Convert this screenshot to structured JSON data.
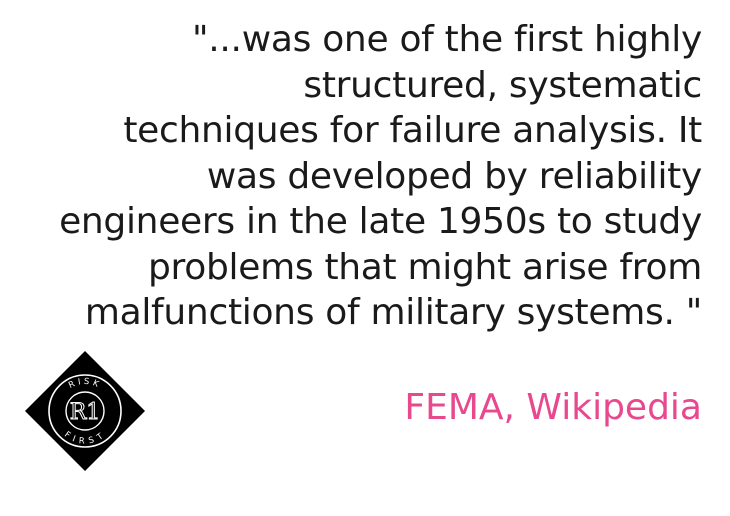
{
  "quote": {
    "lines": [
      "\"...was one of the first highly",
      "structured, systematic",
      "techniques for failure analysis. It",
      "was developed by reliability",
      "engineers in the late 1950s to study",
      "problems that might arise from",
      "malfunctions of military systems. \""
    ]
  },
  "attribution": {
    "text": "FEMA, Wikipedia",
    "color": "#e8488d"
  },
  "logo": {
    "icon": "risk-first-logo",
    "monogram": "R1",
    "top_text": "RISK",
    "bottom_text": "FIRST"
  }
}
